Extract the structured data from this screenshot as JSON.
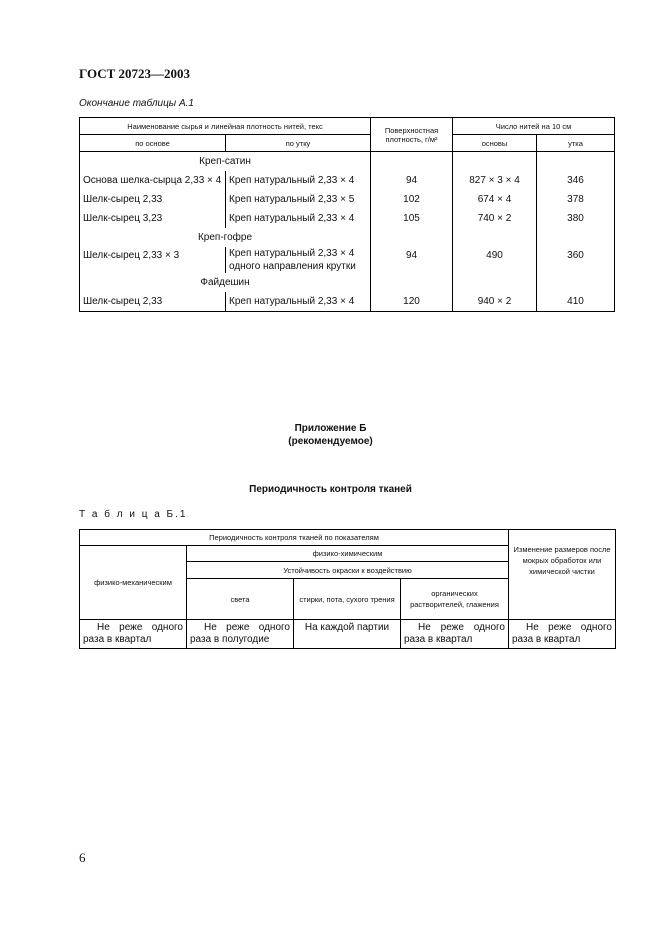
{
  "header": "ГОСТ 20723—2003",
  "table_a": {
    "caption": "Окончание таблицы А.1",
    "h_name": "Наименование сырья и линейная плотность нитей, текс",
    "h_density": "Поверхностная плотность, г/м²",
    "h_count": "Число нитей на 10 см",
    "h_warp": "по основе",
    "h_weft": "по утку",
    "h_osnovy": "основы",
    "h_utka": "утка",
    "groups": [
      {
        "title": "Креп-сатин",
        "rows": [
          {
            "warp": "Основа шелка-сырца 2,33 × 4",
            "weft": "Креп натуральный 2,33 × 4",
            "density": "94",
            "osnovy": "827 × 3 × 4",
            "utka": "346"
          },
          {
            "warp": "Шелк-сырец 2,33",
            "weft": "Креп натуральный 2,33 × 5",
            "density": "102",
            "osnovy": "674 × 4",
            "utka": "378"
          },
          {
            "warp": "Шелк-сырец 3,23",
            "weft": "Креп натуральный 2,33 × 4",
            "density": "105",
            "osnovy": "740 × 2",
            "utka": "380"
          }
        ]
      },
      {
        "title": "Креп-гофре",
        "rows": [
          {
            "warp": "Шелк-сырец 2,33 × 3",
            "weft": "Креп натуральный 2,33 × 4 одного направления крутки",
            "density": "94",
            "osnovy": "490",
            "utka": "360"
          }
        ]
      },
      {
        "title": "Файдешин",
        "rows": [
          {
            "warp": "Шелк-сырец 2,33",
            "weft": "Креп натуральный 2,33 × 4",
            "density": "120",
            "osnovy": "940 × 2",
            "utka": "410"
          }
        ]
      }
    ]
  },
  "appendix": {
    "title": "Приложение Б",
    "subtitle": "(рекомендуемое)",
    "heading": "Периодичность контроля тканей"
  },
  "table_b": {
    "caption": "Т а б л и ц а  Б.1",
    "h_main": "Периодичность контроля тканей по показателям",
    "h_size": "Изменение размеров после мокрых обработок или химической чистки",
    "h_mech": "физико-механическим",
    "h_chem": "физико-химическим",
    "h_fast": "Устойчивость окраски к воздействию",
    "h_light": "света",
    "h_wash": "стирки, пота, сухого трения",
    "h_org": "органических растворителей, глажения",
    "values": [
      "Не реже одного раза в квартал",
      "Не реже одного раза в полугодие",
      "На каждой партии",
      "Не реже одного раза в квартал",
      "Не реже одного раза в квартал"
    ]
  },
  "page_number": "6"
}
